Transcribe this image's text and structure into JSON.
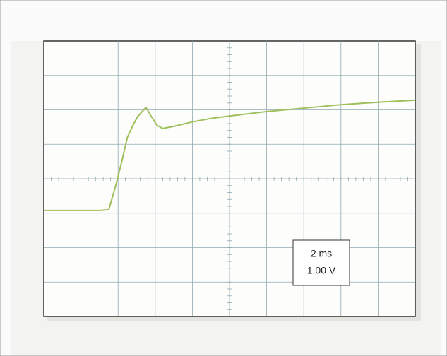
{
  "chart_data": {
    "type": "line",
    "annotations": [
      "2 ms",
      "1.00 V"
    ],
    "x": [
      0,
      3.0,
      3.5,
      3.9,
      4.2,
      4.5,
      4.8,
      5.05,
      5.3,
      5.5,
      5.8,
      6.1,
      6.4,
      7.0,
      8.0,
      9.0,
      10.0,
      12.0,
      14.0,
      16.0,
      18.0,
      20.0
    ],
    "series": [
      {
        "color": "#9fbf5a",
        "values": [
          -0.92,
          -0.92,
          -0.9,
          -0.15,
          0.5,
          1.2,
          1.55,
          1.8,
          1.95,
          2.07,
          1.8,
          1.55,
          1.46,
          1.52,
          1.65,
          1.75,
          1.82,
          1.95,
          2.05,
          2.15,
          2.22,
          2.28
        ]
      }
    ],
    "xlim": [
      0,
      20
    ],
    "ylim": [
      -4,
      4
    ],
    "grid": true
  }
}
